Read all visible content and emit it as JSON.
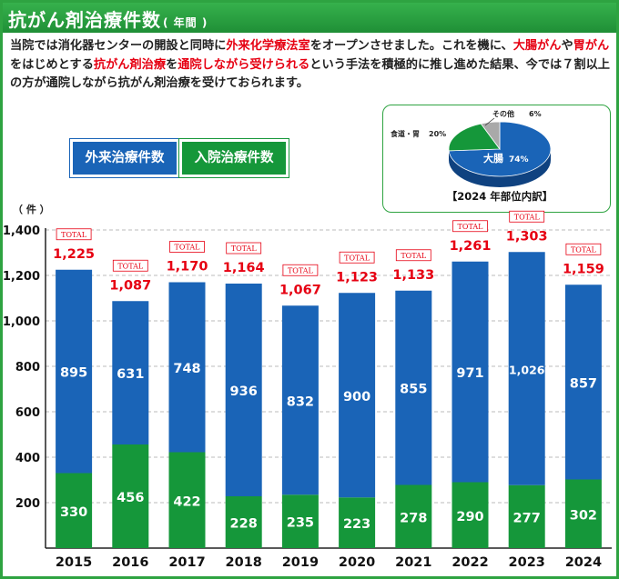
{
  "header": {
    "title": "抗がん剤治療件数",
    "subtitle": "( 年間 )"
  },
  "intro": {
    "p1": "当院では消化器センターの開設と同時に",
    "p2": "外来化学療法室",
    "p3": "をオープンさせました。これを機に、",
    "p4": "大腸がん",
    "p5": "や",
    "p6": "胃がん",
    "p7": "をはじめとする",
    "p8": "抗がん剤治療",
    "p9": "を",
    "p10": "通院しながら受けられる",
    "p11": "という手法を積極的に推し進めた結果、今では７割以上の方が通院しながら抗がん剤治療を受けておられます。"
  },
  "legend": {
    "outpatient": "外来治療件数",
    "inpatient": "入院治療件数"
  },
  "pie": {
    "title": "【2024 年部位内訳】",
    "slices": [
      {
        "label": "大腸",
        "pct_label": "74%",
        "value": 74,
        "color": "#1a64b7"
      },
      {
        "label": "食道・胃",
        "pct_label": "20%",
        "value": 20,
        "color": "#15973a"
      },
      {
        "label": "その他",
        "pct_label": "6%",
        "value": 6,
        "color": "#a9a9a9"
      }
    ]
  },
  "chart_data": {
    "type": "bar",
    "stacked": true,
    "ylabel": "（ 件 ）",
    "ylim": [
      0,
      1400
    ],
    "yticks": [
      "200",
      "400",
      "600",
      "800",
      "1,000",
      "1,200",
      "1,400"
    ],
    "ytick_values": [
      200,
      400,
      600,
      800,
      1000,
      1200,
      1400
    ],
    "grid": true,
    "categories": [
      "2015",
      "2016",
      "2017",
      "2018",
      "2019",
      "2020",
      "2021",
      "2022",
      "2023",
      "2024"
    ],
    "series": [
      {
        "name": "入院治療件数",
        "color": "#15973a",
        "values": [
          330,
          456,
          422,
          228,
          235,
          223,
          278,
          290,
          277,
          302
        ],
        "labels": [
          "330",
          "456",
          "422",
          "228",
          "235",
          "223",
          "278",
          "290",
          "277",
          "302"
        ]
      },
      {
        "name": "外来治療件数",
        "color": "#1a64b7",
        "values": [
          895,
          631,
          748,
          936,
          832,
          900,
          855,
          971,
          1026,
          857
        ],
        "labels": [
          "895",
          "631",
          "748",
          "936",
          "832",
          "900",
          "855",
          "971",
          "1,026",
          "857"
        ]
      }
    ],
    "total_tag": "TOTAL",
    "totals": [
      "1,225",
      "1,087",
      "1,170",
      "1,164",
      "1,067",
      "1,123",
      "1,133",
      "1,261",
      "1,303",
      "1,159"
    ],
    "total_values": [
      1225,
      1087,
      1170,
      1164,
      1067,
      1123,
      1133,
      1261,
      1303,
      1159
    ]
  },
  "colors": {
    "brand_green": "#2ea341",
    "outpatient_blue": "#1a64b7",
    "inpatient_green": "#15973a",
    "total_red": "#e60012"
  }
}
